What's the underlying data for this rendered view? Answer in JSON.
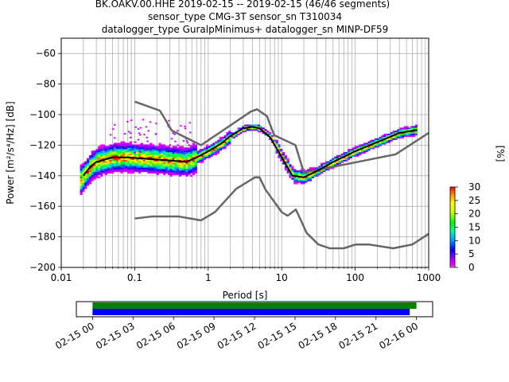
{
  "title_lines": [
    "BK.OAKV.00.HHE   2019-02-15 -- 2019-02-15  (46/46 segments)",
    "sensor_type CMG-3T sensor_sn T310034",
    "datalogger_type GuralpMinimus+ datalogger_sn MINP-DF59"
  ],
  "chart_data": {
    "type": "line",
    "xlabel": "Period [s]",
    "ylabel": "Power [m²/s⁴/Hz] [dB]",
    "xscale": "log",
    "xlim": [
      0.01,
      1000
    ],
    "ylim": [
      -200,
      -50
    ],
    "grid": true,
    "xticks": [
      {
        "value": 0.01,
        "label": "0.01"
      },
      {
        "value": 0.1,
        "label": "0.1"
      },
      {
        "value": 1,
        "label": "1"
      },
      {
        "value": 10,
        "label": "10"
      },
      {
        "value": 100,
        "label": "100"
      },
      {
        "value": 1000,
        "label": "1000"
      }
    ],
    "yticks": [
      {
        "value": -60,
        "label": "−60"
      },
      {
        "value": -80,
        "label": "−80"
      },
      {
        "value": -100,
        "label": "−100"
      },
      {
        "value": -120,
        "label": "−120"
      },
      {
        "value": -140,
        "label": "−140"
      },
      {
        "value": -160,
        "label": "−160"
      },
      {
        "value": -180,
        "label": "−180"
      },
      {
        "value": -200,
        "label": "−200"
      }
    ],
    "series": [
      {
        "role": "new-high-noise-model",
        "color": "#666666",
        "x": [
          0.1,
          0.22,
          0.32,
          0.8,
          3.8,
          4.6,
          6.3,
          7.9,
          15.4,
          20,
          354.8,
          1000
        ],
        "y": [
          -91.5,
          -97.4,
          -110.5,
          -120,
          -98,
          -96.5,
          -101,
          -113.5,
          -120,
          -138,
          -126,
          -112
        ]
      },
      {
        "role": "new-low-noise-model",
        "color": "#666666",
        "x": [
          0.1,
          0.17,
          0.4,
          0.8,
          1.24,
          2.4,
          4.3,
          5,
          6,
          10,
          12,
          15.6,
          21.9,
          31.6,
          45,
          70,
          101,
          154,
          328,
          600,
          1000
        ],
        "y": [
          -168,
          -166.7,
          -166.7,
          -169.2,
          -163.7,
          -148.6,
          -141.1,
          -141.1,
          -149,
          -163.8,
          -166.2,
          -162.1,
          -177.5,
          -185,
          -187.5,
          -187.5,
          -185,
          -185,
          -187.5,
          -185,
          -178
        ]
      },
      {
        "role": "mean-psd",
        "color": "#000000",
        "x": [
          0.02,
          0.025,
          0.03,
          0.05,
          0.08,
          0.15,
          0.3,
          0.5,
          0.7,
          1,
          1.5,
          2,
          3,
          4,
          5,
          7,
          10,
          14,
          20,
          30,
          50,
          100,
          200,
          400,
          700
        ],
        "y": [
          -140,
          -134,
          -131,
          -128,
          -128,
          -129,
          -130,
          -131,
          -128,
          -124,
          -119,
          -114,
          -109,
          -108,
          -109,
          -115,
          -128,
          -140,
          -141,
          -137,
          -131,
          -124,
          -118,
          -112,
          -110
        ]
      }
    ],
    "psd_density": {
      "type": "heatmap",
      "colormap": "pqlx",
      "unit": "[%]",
      "clim": [
        0,
        30
      ],
      "cbar_ticks": [
        0,
        5,
        10,
        15,
        20,
        25,
        30
      ]
    }
  },
  "timeline": {
    "tick_labels": [
      "02-15 00",
      "02-15 03",
      "02-15 06",
      "02-15 09",
      "02-15 12",
      "02-15 15",
      "02-15 18",
      "02-15 21",
      "02-16 00"
    ],
    "range_hours": [
      -1.2,
      25.2
    ],
    "bars": [
      {
        "role": "data-coverage",
        "color": "#008000",
        "start_hour": 0,
        "end_hour": 24.0
      },
      {
        "role": "psd-segments",
        "color": "#0000ff",
        "start_hour": 0,
        "end_hour": 23.5
      }
    ]
  },
  "colorbar_label": "[%]"
}
